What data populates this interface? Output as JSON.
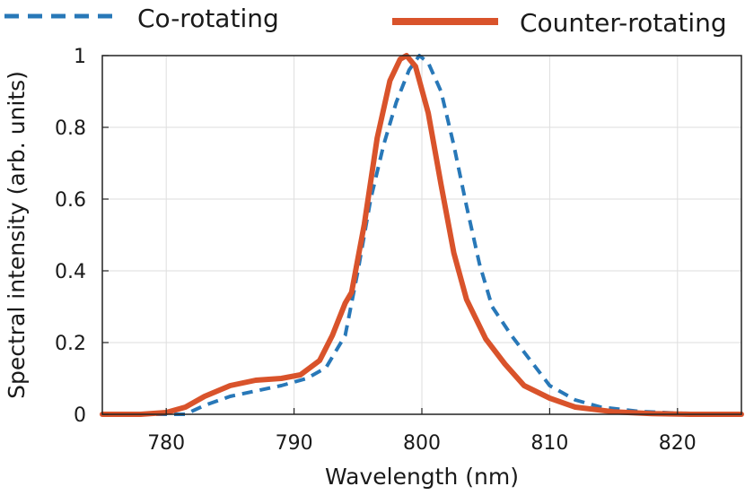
{
  "chart_data": {
    "type": "line",
    "title": "",
    "xlabel": "Wavelength (nm)",
    "ylabel": "Spectral intensity (arb. units)",
    "xlim": [
      775,
      825
    ],
    "ylim": [
      0,
      1
    ],
    "xticks": [
      780,
      790,
      800,
      810,
      820
    ],
    "yticks": [
      0,
      0.2,
      0.4,
      0.6,
      0.8,
      1
    ],
    "xtick_labels": [
      "780",
      "790",
      "800",
      "810",
      "820"
    ],
    "ytick_labels": [
      "0",
      "0.2",
      "0.4",
      "0.6",
      "0.8",
      "1"
    ],
    "grid": true,
    "legend_position": "top, outside plot",
    "series": [
      {
        "name": "Co-rotating",
        "color": "#2878b8",
        "style": "dashed",
        "x": [
          775,
          780,
          781.5,
          783,
          785,
          787,
          789,
          791,
          792.5,
          794,
          795,
          796,
          797,
          798,
          799,
          799.8,
          800.5,
          801.5,
          802.5,
          803.5,
          804.5,
          805.5,
          807,
          808.5,
          810,
          812,
          814,
          817,
          820,
          825
        ],
        "y": [
          0.0,
          0.0,
          0.0,
          0.025,
          0.05,
          0.065,
          0.08,
          0.1,
          0.13,
          0.22,
          0.4,
          0.6,
          0.75,
          0.87,
          0.96,
          1.0,
          0.98,
          0.9,
          0.75,
          0.58,
          0.42,
          0.3,
          0.22,
          0.15,
          0.08,
          0.04,
          0.02,
          0.008,
          0.003,
          0.0
        ]
      },
      {
        "name": "Counter-rotating",
        "color": "#d9532b",
        "style": "solid",
        "x": [
          775,
          778,
          780,
          781.5,
          783,
          785,
          787,
          789,
          790.5,
          792,
          793,
          794,
          794.5,
          795.5,
          796.5,
          797.5,
          798.3,
          798.8,
          799.5,
          800.5,
          801.5,
          802.5,
          803.5,
          805,
          806.5,
          808,
          810,
          812,
          815,
          818,
          821,
          825
        ],
        "y": [
          0.0,
          0.0,
          0.005,
          0.02,
          0.05,
          0.08,
          0.095,
          0.1,
          0.11,
          0.15,
          0.22,
          0.31,
          0.34,
          0.53,
          0.77,
          0.93,
          0.99,
          1.0,
          0.97,
          0.84,
          0.64,
          0.45,
          0.32,
          0.21,
          0.14,
          0.08,
          0.045,
          0.02,
          0.007,
          0.002,
          0.0,
          0.0
        ]
      }
    ]
  }
}
